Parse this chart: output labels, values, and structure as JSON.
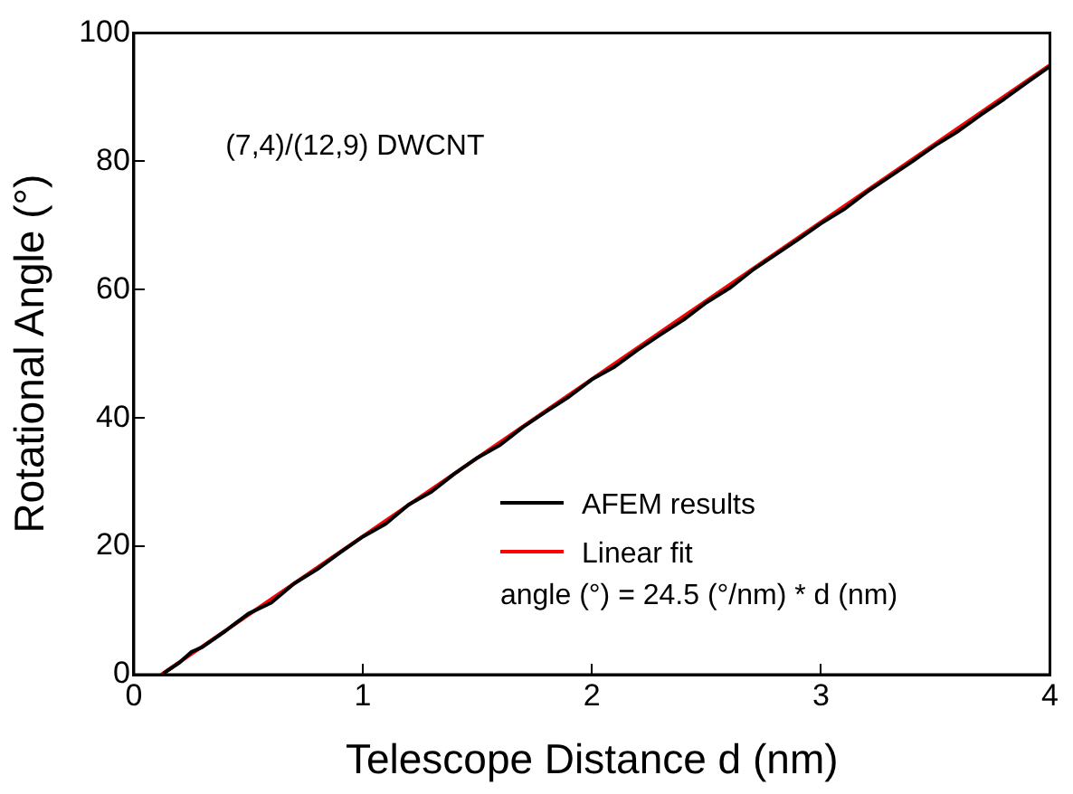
{
  "chart_data": {
    "type": "line",
    "xlabel": "Telescope Distance d (nm)",
    "ylabel": "Rotational Angle (°)",
    "xlim": [
      0,
      4
    ],
    "xticks": [
      0,
      1,
      2,
      3,
      4
    ],
    "ylim": [
      0,
      100
    ],
    "yticks": [
      0,
      20,
      40,
      60,
      80,
      100
    ],
    "legend": "bottom right",
    "grid": false,
    "marker": "none",
    "line_style": "solid",
    "annotations": [
      "(7,4)/(12,9) DWCNT",
      "angle (°) = 24.5 (°/nm) * d (nm)"
    ],
    "series": [
      {
        "name": "AFEM results",
        "color": "#000000",
        "x": [
          0.13,
          0.2,
          0.25,
          0.3,
          0.4,
          0.5,
          0.6,
          0.7,
          0.8,
          0.9,
          1.0,
          1.1,
          1.2,
          1.3,
          1.4,
          1.5,
          1.6,
          1.7,
          1.8,
          1.9,
          2.0,
          2.1,
          2.2,
          2.3,
          2.4,
          2.5,
          2.6,
          2.7,
          2.8,
          2.9,
          3.0,
          3.1,
          3.2,
          3.3,
          3.4,
          3.5,
          3.6,
          3.7,
          3.8,
          3.9,
          4.0
        ],
        "values": [
          0.2,
          1.9,
          3.5,
          4.3,
          6.8,
          9.5,
          11.2,
          14.2,
          16.4,
          19.0,
          21.5,
          23.5,
          26.5,
          28.5,
          31.3,
          33.8,
          35.8,
          38.6,
          41.0,
          43.3,
          46.0,
          48.0,
          50.6,
          53.0,
          55.3,
          58.0,
          60.2,
          63.0,
          65.4,
          67.8,
          70.3,
          72.5,
          75.2,
          77.6,
          80.0,
          82.5,
          84.7,
          87.3,
          89.7,
          92.3,
          94.8
        ]
      },
      {
        "name": "Linear fit",
        "color": "#ff0000",
        "x": [
          0.12,
          4.0
        ],
        "values": [
          0,
          95
        ]
      }
    ]
  }
}
